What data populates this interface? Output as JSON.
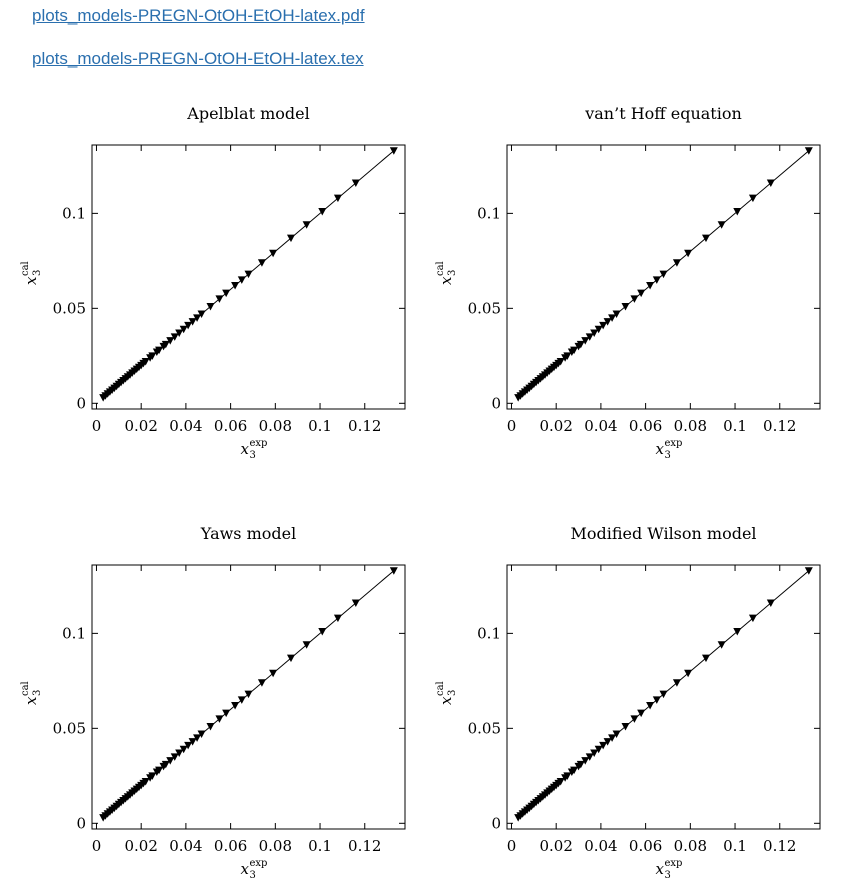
{
  "links": [
    {
      "label": "plots_models-PREGN-OtOH-EtOH-latex.pdf"
    },
    {
      "label": "plots_models-PREGN-OtOH-EtOH-latex.tex"
    }
  ],
  "axis_labels": {
    "x_base": "x",
    "x_sub": "3",
    "x_sup": "exp",
    "y_base": "x",
    "y_sub": "3",
    "y_sup": "cal"
  },
  "chart_data": [
    {
      "type": "scatter",
      "title": "Apelblat model",
      "xlabel": "x3^exp",
      "ylabel": "x3^cal",
      "xlim": [
        -0.002,
        0.138
      ],
      "ylim": [
        -0.003,
        0.136
      ],
      "x_ticks": [
        0,
        0.02,
        0.04,
        0.06,
        0.08,
        0.1,
        0.12
      ],
      "x_tick_labels": [
        "0",
        "0.02",
        "0.04",
        "0.06",
        "0.08",
        "0.1",
        "0.12"
      ],
      "y_ticks": [
        0,
        0.05,
        0.1
      ],
      "y_tick_labels": [
        "0",
        "0.05",
        "0.1"
      ],
      "line": [
        [
          0.003,
          0.003
        ],
        [
          0.133,
          0.133
        ]
      ],
      "marker": "down-triangle",
      "x": [
        0.003,
        0.004,
        0.005,
        0.006,
        0.007,
        0.008,
        0.009,
        0.01,
        0.011,
        0.012,
        0.013,
        0.014,
        0.015,
        0.016,
        0.017,
        0.018,
        0.019,
        0.02,
        0.021,
        0.022,
        0.024,
        0.025,
        0.027,
        0.028,
        0.03,
        0.031,
        0.033,
        0.035,
        0.037,
        0.039,
        0.041,
        0.043,
        0.045,
        0.047,
        0.051,
        0.055,
        0.058,
        0.062,
        0.065,
        0.068,
        0.074,
        0.079,
        0.087,
        0.094,
        0.101,
        0.108,
        0.116,
        0.133
      ],
      "y": [
        0.003,
        0.004,
        0.005,
        0.006,
        0.007,
        0.008,
        0.009,
        0.01,
        0.011,
        0.012,
        0.013,
        0.014,
        0.015,
        0.016,
        0.017,
        0.018,
        0.019,
        0.02,
        0.021,
        0.022,
        0.024,
        0.025,
        0.027,
        0.028,
        0.03,
        0.031,
        0.033,
        0.035,
        0.037,
        0.039,
        0.041,
        0.043,
        0.045,
        0.047,
        0.051,
        0.055,
        0.058,
        0.062,
        0.065,
        0.068,
        0.074,
        0.079,
        0.087,
        0.094,
        0.101,
        0.108,
        0.116,
        0.133
      ]
    },
    {
      "type": "scatter",
      "title": "van’t Hoff equation",
      "xlabel": "x3^exp",
      "ylabel": "x3^cal",
      "xlim": [
        -0.002,
        0.138
      ],
      "ylim": [
        -0.003,
        0.136
      ],
      "x_ticks": [
        0,
        0.02,
        0.04,
        0.06,
        0.08,
        0.1,
        0.12
      ],
      "x_tick_labels": [
        "0",
        "0.02",
        "0.04",
        "0.06",
        "0.08",
        "0.1",
        "0.12"
      ],
      "y_ticks": [
        0,
        0.05,
        0.1
      ],
      "y_tick_labels": [
        "0",
        "0.05",
        "0.1"
      ],
      "line": [
        [
          0.003,
          0.003
        ],
        [
          0.133,
          0.133
        ]
      ],
      "marker": "down-triangle",
      "x": [
        0.003,
        0.004,
        0.005,
        0.006,
        0.007,
        0.008,
        0.009,
        0.01,
        0.011,
        0.012,
        0.013,
        0.014,
        0.015,
        0.016,
        0.017,
        0.018,
        0.019,
        0.02,
        0.021,
        0.022,
        0.024,
        0.025,
        0.027,
        0.028,
        0.03,
        0.031,
        0.033,
        0.035,
        0.037,
        0.039,
        0.041,
        0.043,
        0.045,
        0.047,
        0.051,
        0.055,
        0.058,
        0.062,
        0.065,
        0.068,
        0.074,
        0.079,
        0.087,
        0.094,
        0.101,
        0.108,
        0.116,
        0.133
      ],
      "y": [
        0.003,
        0.004,
        0.005,
        0.006,
        0.007,
        0.008,
        0.009,
        0.01,
        0.011,
        0.012,
        0.013,
        0.014,
        0.015,
        0.016,
        0.017,
        0.018,
        0.019,
        0.02,
        0.021,
        0.022,
        0.024,
        0.025,
        0.027,
        0.028,
        0.03,
        0.031,
        0.033,
        0.035,
        0.037,
        0.039,
        0.041,
        0.043,
        0.045,
        0.047,
        0.051,
        0.055,
        0.058,
        0.062,
        0.065,
        0.068,
        0.074,
        0.079,
        0.087,
        0.094,
        0.101,
        0.108,
        0.116,
        0.133
      ]
    },
    {
      "type": "scatter",
      "title": "Yaws model",
      "xlabel": "x3^exp",
      "ylabel": "x3^cal",
      "xlim": [
        -0.002,
        0.138
      ],
      "ylim": [
        -0.003,
        0.136
      ],
      "x_ticks": [
        0,
        0.02,
        0.04,
        0.06,
        0.08,
        0.1,
        0.12
      ],
      "x_tick_labels": [
        "0",
        "0.02",
        "0.04",
        "0.06",
        "0.08",
        "0.1",
        "0.12"
      ],
      "y_ticks": [
        0,
        0.05,
        0.1
      ],
      "y_tick_labels": [
        "0",
        "0.05",
        "0.1"
      ],
      "line": [
        [
          0.003,
          0.003
        ],
        [
          0.133,
          0.133
        ]
      ],
      "marker": "down-triangle",
      "x": [
        0.003,
        0.004,
        0.005,
        0.006,
        0.007,
        0.008,
        0.009,
        0.01,
        0.011,
        0.012,
        0.013,
        0.014,
        0.015,
        0.016,
        0.017,
        0.018,
        0.019,
        0.02,
        0.021,
        0.022,
        0.024,
        0.025,
        0.027,
        0.028,
        0.03,
        0.031,
        0.033,
        0.035,
        0.037,
        0.039,
        0.041,
        0.043,
        0.045,
        0.047,
        0.051,
        0.055,
        0.058,
        0.062,
        0.065,
        0.068,
        0.074,
        0.079,
        0.087,
        0.094,
        0.101,
        0.108,
        0.116,
        0.133
      ],
      "y": [
        0.003,
        0.004,
        0.005,
        0.006,
        0.007,
        0.008,
        0.009,
        0.01,
        0.011,
        0.012,
        0.013,
        0.014,
        0.015,
        0.016,
        0.017,
        0.018,
        0.019,
        0.02,
        0.021,
        0.022,
        0.024,
        0.025,
        0.027,
        0.028,
        0.03,
        0.031,
        0.033,
        0.035,
        0.037,
        0.039,
        0.041,
        0.043,
        0.045,
        0.047,
        0.051,
        0.055,
        0.058,
        0.062,
        0.065,
        0.068,
        0.074,
        0.079,
        0.087,
        0.094,
        0.101,
        0.108,
        0.116,
        0.133
      ]
    },
    {
      "type": "scatter",
      "title": "Modified Wilson model",
      "xlabel": "x3^exp",
      "ylabel": "x3^cal",
      "xlim": [
        -0.002,
        0.138
      ],
      "ylim": [
        -0.003,
        0.136
      ],
      "x_ticks": [
        0,
        0.02,
        0.04,
        0.06,
        0.08,
        0.1,
        0.12
      ],
      "x_tick_labels": [
        "0",
        "0.02",
        "0.04",
        "0.06",
        "0.08",
        "0.1",
        "0.12"
      ],
      "y_ticks": [
        0,
        0.05,
        0.1
      ],
      "y_tick_labels": [
        "0",
        "0.05",
        "0.1"
      ],
      "line": [
        [
          0.003,
          0.003
        ],
        [
          0.133,
          0.133
        ]
      ],
      "marker": "down-triangle",
      "x": [
        0.003,
        0.004,
        0.005,
        0.006,
        0.007,
        0.008,
        0.009,
        0.01,
        0.011,
        0.012,
        0.013,
        0.014,
        0.015,
        0.016,
        0.017,
        0.018,
        0.019,
        0.02,
        0.021,
        0.022,
        0.024,
        0.025,
        0.027,
        0.028,
        0.03,
        0.031,
        0.033,
        0.035,
        0.037,
        0.039,
        0.041,
        0.043,
        0.045,
        0.047,
        0.051,
        0.055,
        0.058,
        0.062,
        0.065,
        0.068,
        0.074,
        0.079,
        0.087,
        0.094,
        0.101,
        0.108,
        0.116,
        0.133
      ],
      "y": [
        0.003,
        0.004,
        0.005,
        0.006,
        0.007,
        0.008,
        0.009,
        0.01,
        0.011,
        0.012,
        0.013,
        0.014,
        0.015,
        0.016,
        0.017,
        0.018,
        0.019,
        0.02,
        0.021,
        0.022,
        0.024,
        0.025,
        0.027,
        0.028,
        0.03,
        0.031,
        0.033,
        0.035,
        0.037,
        0.039,
        0.041,
        0.043,
        0.045,
        0.047,
        0.051,
        0.055,
        0.058,
        0.062,
        0.065,
        0.068,
        0.074,
        0.079,
        0.087,
        0.094,
        0.101,
        0.108,
        0.116,
        0.133
      ]
    }
  ]
}
